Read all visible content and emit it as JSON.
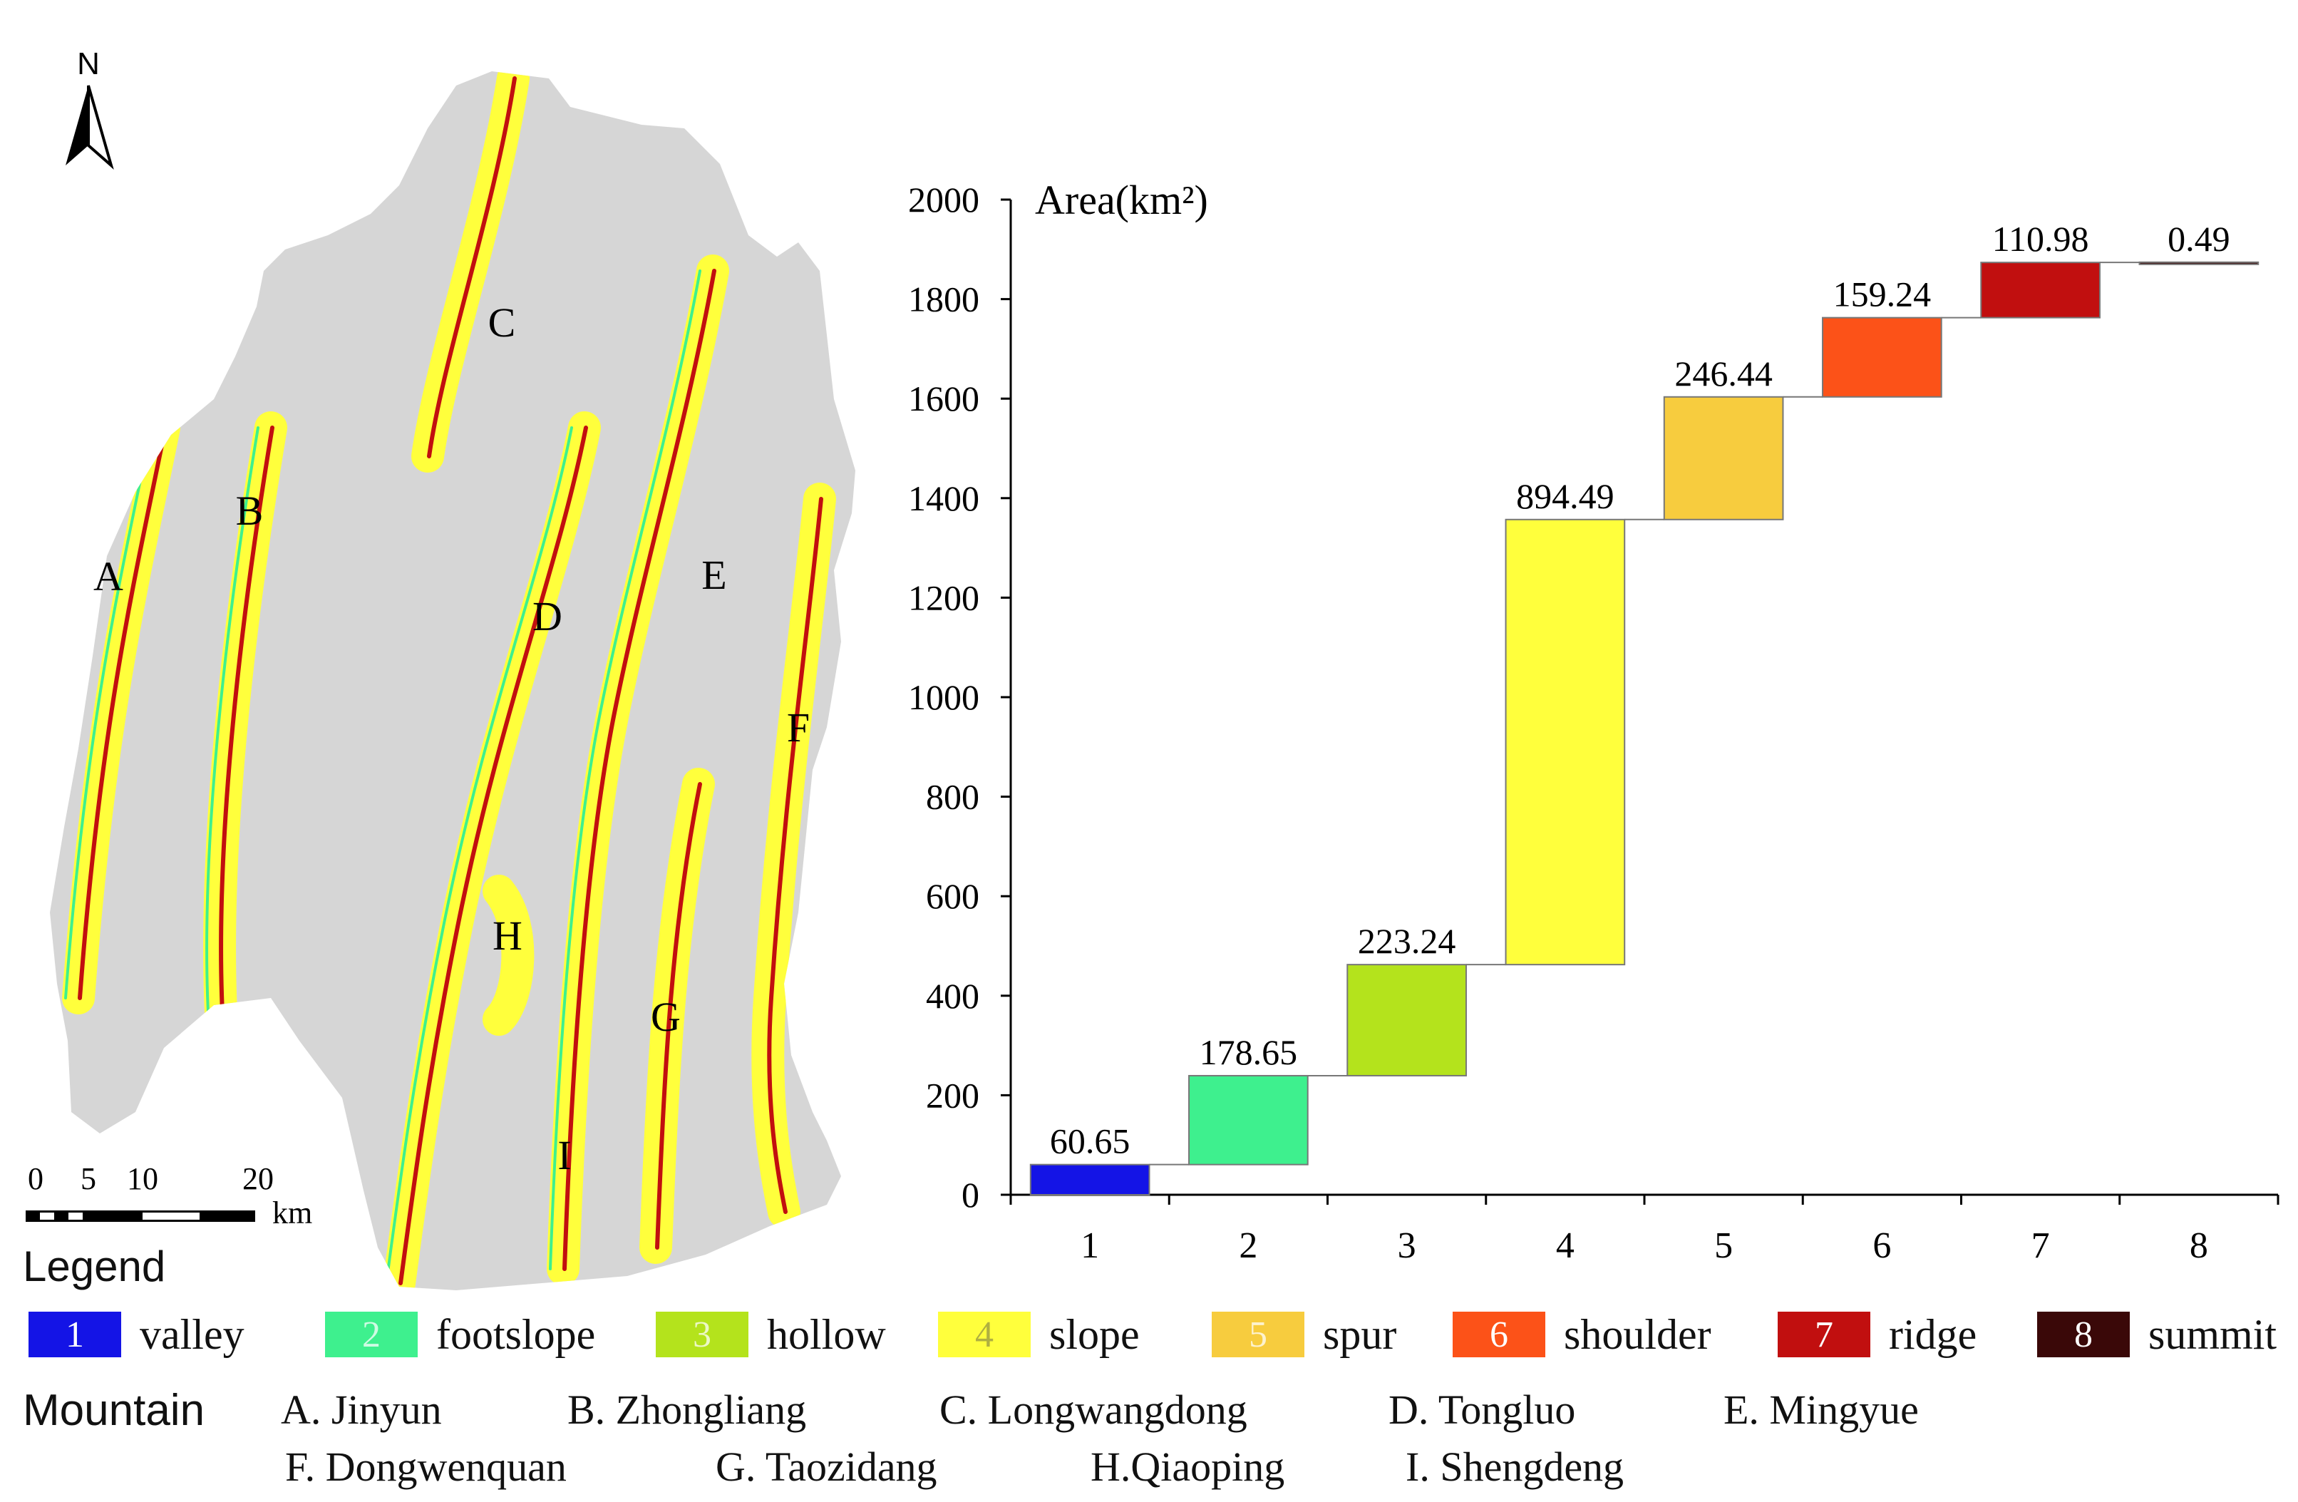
{
  "map": {
    "north_label": "N",
    "scale_labels": [
      "0",
      "5",
      "10",
      "20"
    ],
    "scale_unit": "km",
    "mountain_marks": [
      "A",
      "B",
      "C",
      "D",
      "E",
      "F",
      "G",
      "H",
      "I"
    ]
  },
  "legend": {
    "title": "Legend",
    "items": [
      {
        "num": "1",
        "label": "valley",
        "color": "#1414e6"
      },
      {
        "num": "2",
        "label": "footslope",
        "color": "#3ef08e"
      },
      {
        "num": "3",
        "label": "hollow",
        "color": "#b4e31c"
      },
      {
        "num": "4",
        "label": "slope",
        "color": "#ffff3c"
      },
      {
        "num": "5",
        "label": "spur",
        "color": "#f7cc3e"
      },
      {
        "num": "6",
        "label": "shoulder",
        "color": "#fc5218"
      },
      {
        "num": "7",
        "label": "ridge",
        "color": "#c10f0f"
      },
      {
        "num": "8",
        "label": "summit",
        "color": "#3a0808"
      }
    ]
  },
  "mountains": {
    "heading": "Mountain",
    "names": [
      "A. Jinyun",
      "B. Zhongliang",
      "C. Longwangdong",
      "D. Tongluo",
      "E.  Mingyue",
      "F. Dongwenquan",
      "G. Taozidang",
      "H.Qiaoping",
      "I. Shengdeng"
    ]
  },
  "chart_data": {
    "type": "bar",
    "subtype": "waterfall",
    "ylabel": "Area(km²)",
    "xlabel": "",
    "title": "",
    "categories": [
      "1",
      "2",
      "3",
      "4",
      "5",
      "6",
      "7",
      "8"
    ],
    "values": [
      60.65,
      178.65,
      223.24,
      894.49,
      246.44,
      159.24,
      110.98,
      0.49
    ],
    "value_labels": [
      "60.65",
      "178.65",
      "223.24",
      "894.49",
      "246.44",
      "159.24",
      "110.98",
      "0.49"
    ],
    "ylim": [
      0,
      2000
    ],
    "yticks": [
      0,
      200,
      400,
      600,
      800,
      1000,
      1200,
      1400,
      1600,
      1800,
      2000
    ],
    "colors": [
      "#1414e6",
      "#3ef08e",
      "#b4e31c",
      "#ffff3c",
      "#f7cc3e",
      "#fc5218",
      "#c10f0f",
      "#3a0808"
    ],
    "grid": false,
    "legend": "none"
  }
}
